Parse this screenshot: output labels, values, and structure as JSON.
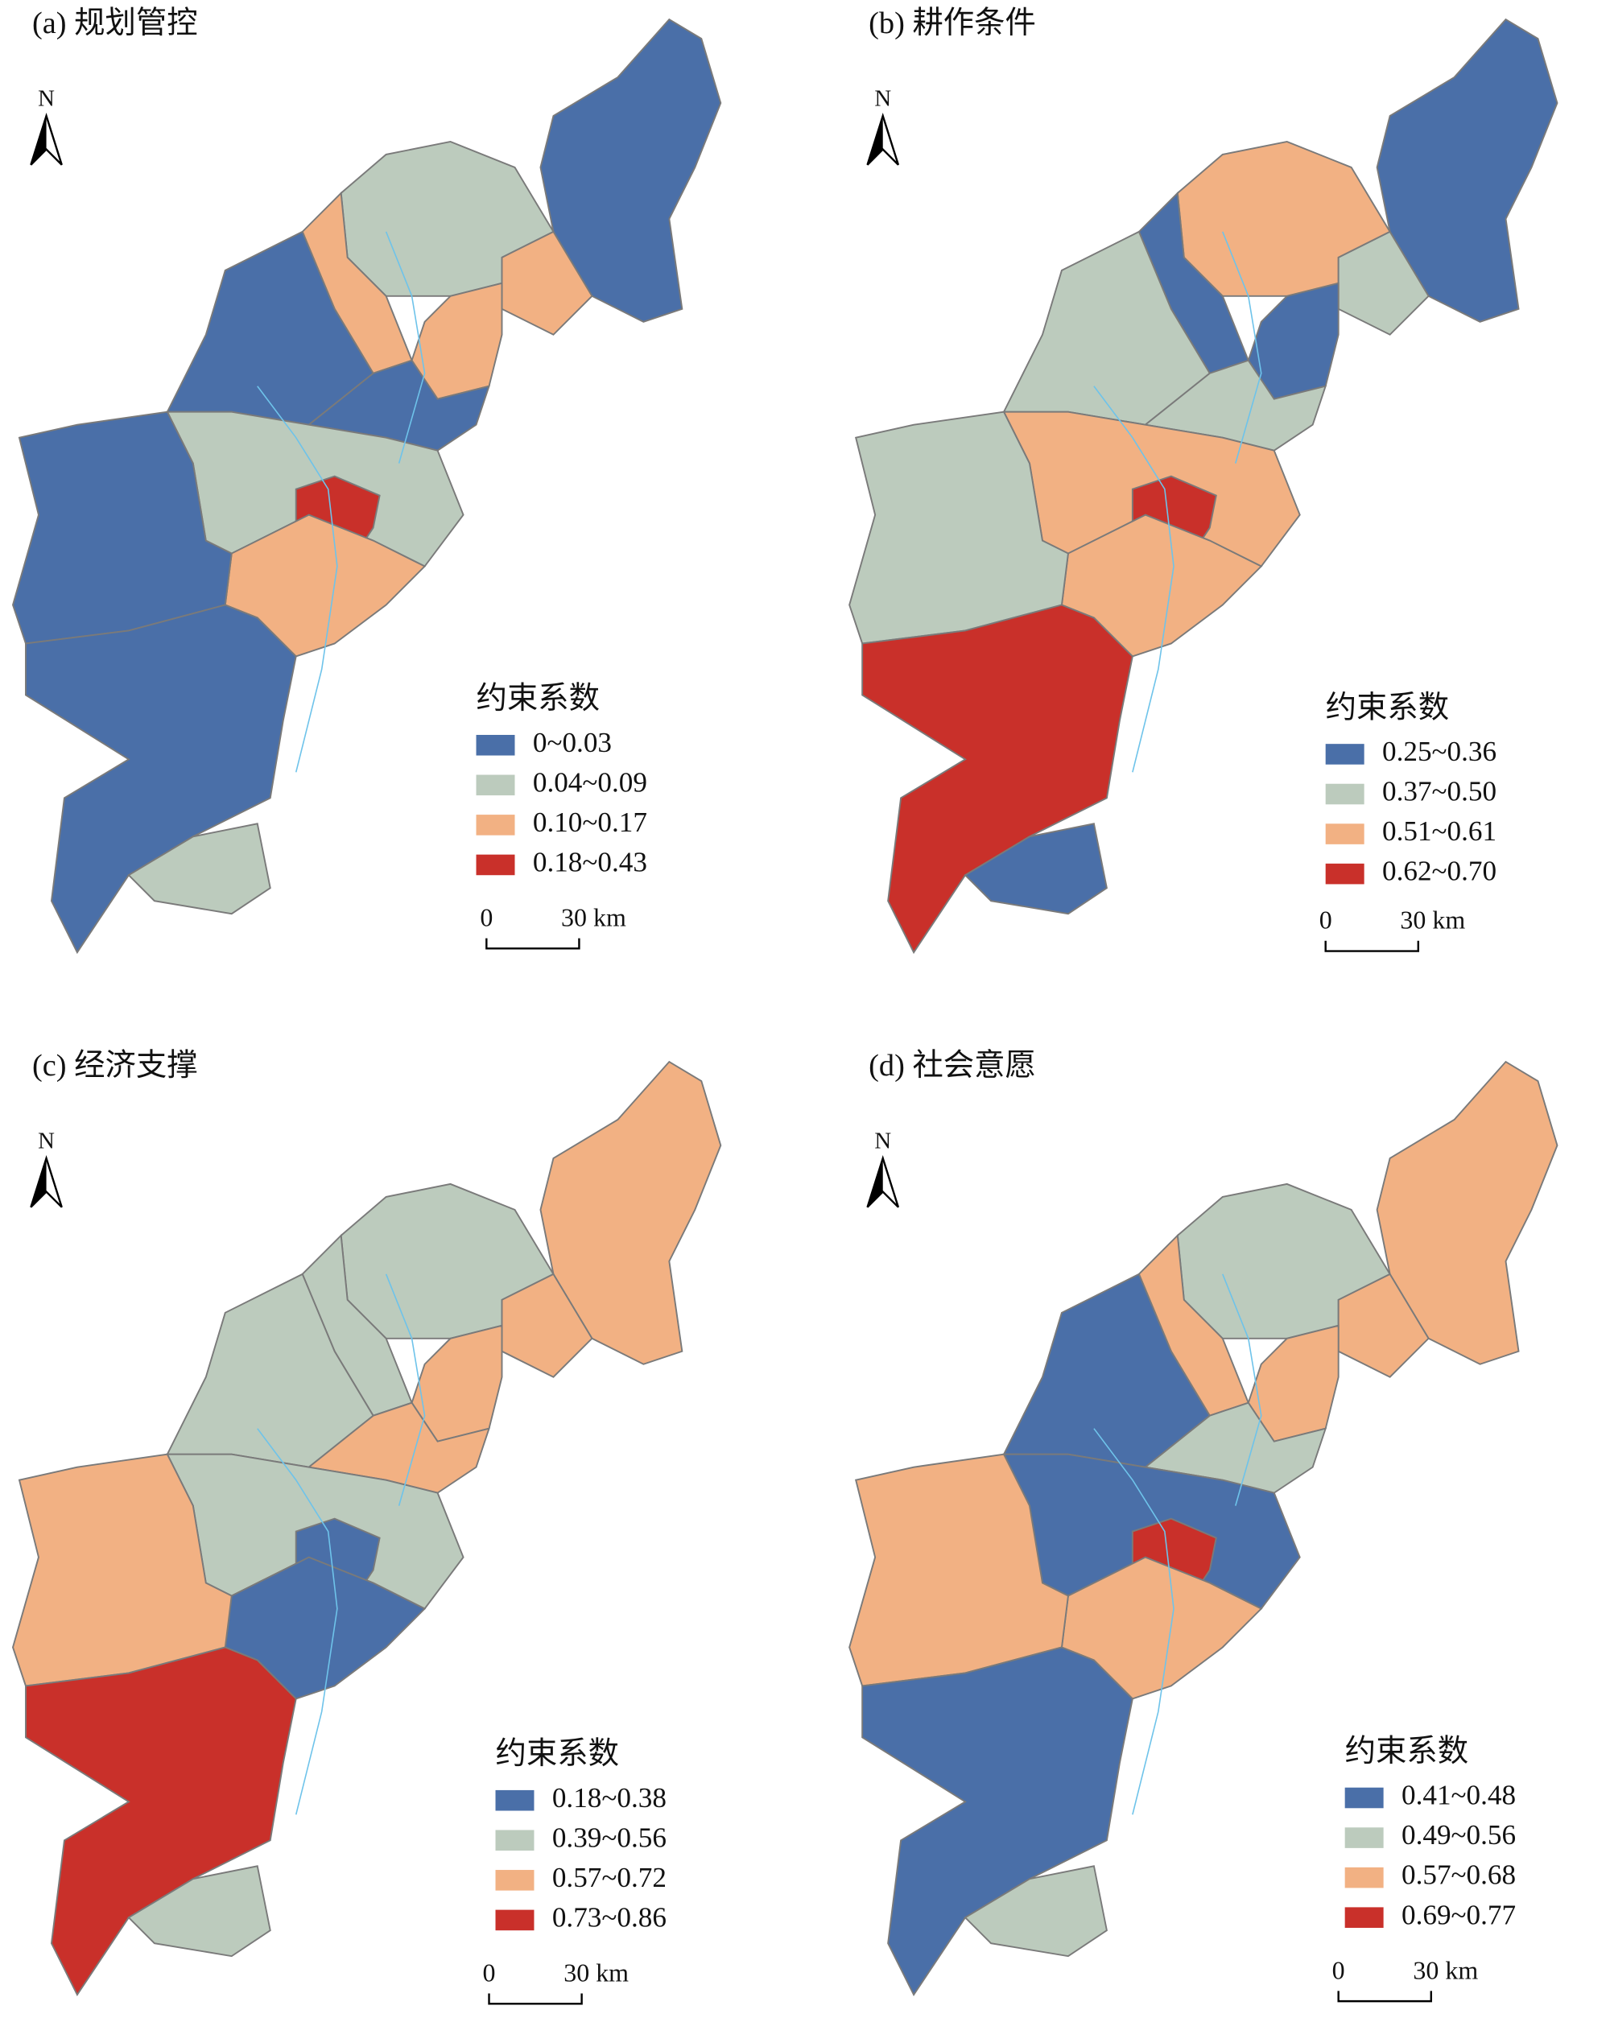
{
  "panels": [
    {
      "title": "(a) 规划管控",
      "north": "N",
      "legend_title": "约束系数",
      "legend": [
        {
          "label": "0~0.03",
          "color": "#4a6fa8"
        },
        {
          "label": "0.04~0.09",
          "color": "#bccbbd"
        },
        {
          "label": "0.10~0.17",
          "color": "#f2b183"
        },
        {
          "label": "0.18~0.43",
          "color": "#c9302a"
        }
      ],
      "scale_bar": [
        "0",
        "30 km"
      ]
    },
    {
      "title": "(b) 耕作条件",
      "north": "N",
      "legend_title": "约束系数",
      "legend": [
        {
          "label": "0.25~0.36",
          "color": "#4a6fa8"
        },
        {
          "label": "0.37~0.50",
          "color": "#bccbbd"
        },
        {
          "label": "0.51~0.61",
          "color": "#f2b183"
        },
        {
          "label": "0.62~0.70",
          "color": "#c9302a"
        }
      ],
      "scale_bar": [
        "0",
        "30 km"
      ]
    },
    {
      "title": "(c) 经济支撑",
      "north": "N",
      "legend_title": "约束系数",
      "legend": [
        {
          "label": "0.18~0.38",
          "color": "#4a6fa8"
        },
        {
          "label": "0.39~0.56",
          "color": "#bccbbd"
        },
        {
          "label": "0.57~0.72",
          "color": "#f2b183"
        },
        {
          "label": "0.73~0.86",
          "color": "#c9302a"
        }
      ],
      "scale_bar": [
        "0",
        "30 km"
      ]
    },
    {
      "title": "(d) 社会意愿",
      "north": "N",
      "legend_title": "约束系数",
      "legend": [
        {
          "label": "0.41~0.48",
          "color": "#4a6fa8"
        },
        {
          "label": "0.49~0.56",
          "color": "#bccbbd"
        },
        {
          "label": "0.57~0.68",
          "color": "#f2b183"
        },
        {
          "label": "0.69~0.77",
          "color": "#c9302a"
        }
      ],
      "scale_bar": [
        "0",
        "30 km"
      ]
    }
  ]
}
